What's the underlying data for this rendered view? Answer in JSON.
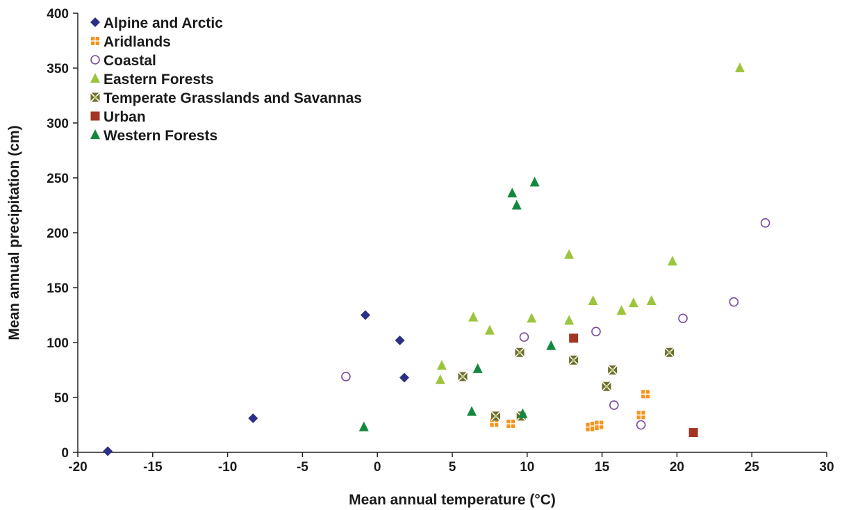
{
  "chart_data": {
    "type": "scatter",
    "title": "",
    "xlabel": "Mean annual temperature (°C)",
    "ylabel": "Mean annual precipitation (cm)",
    "xlim": [
      -20,
      30
    ],
    "ylim": [
      0,
      400
    ],
    "xticks": [
      -20,
      -15,
      -10,
      -5,
      0,
      5,
      10,
      15,
      20,
      25,
      30
    ],
    "yticks": [
      0,
      50,
      100,
      150,
      200,
      250,
      300,
      350,
      400
    ],
    "grid": false,
    "legend": "top-left",
    "series": [
      {
        "name": "Alpine and Arctic",
        "marker": "diamond",
        "color": "#2b2f86",
        "points": [
          [
            -18,
            1
          ],
          [
            -8.3,
            31
          ],
          [
            -0.8,
            125
          ],
          [
            1.5,
            102
          ],
          [
            1.8,
            68
          ]
        ]
      },
      {
        "name": "Aridlands",
        "marker": "square-cross",
        "color": "#f7941d",
        "points": [
          [
            7.8,
            27
          ],
          [
            8.9,
            26
          ],
          [
            14.2,
            23
          ],
          [
            14.5,
            24
          ],
          [
            14.8,
            25
          ],
          [
            17.6,
            34
          ],
          [
            17.9,
            53
          ]
        ]
      },
      {
        "name": "Coastal",
        "marker": "circle-open",
        "color": "#7a4a9b",
        "points": [
          [
            -2.1,
            69
          ],
          [
            9.8,
            105
          ],
          [
            14.6,
            110
          ],
          [
            15.8,
            43
          ],
          [
            17.6,
            25
          ],
          [
            20.4,
            122
          ],
          [
            23.8,
            137
          ],
          [
            25.9,
            209
          ]
        ]
      },
      {
        "name": "Eastern Forests",
        "marker": "triangle",
        "color": "#9bc53d",
        "points": [
          [
            4.2,
            66
          ],
          [
            4.3,
            79
          ],
          [
            6.4,
            123
          ],
          [
            7.5,
            111
          ],
          [
            10.3,
            122
          ],
          [
            12.8,
            120
          ],
          [
            12.8,
            180
          ],
          [
            14.4,
            138
          ],
          [
            16.3,
            129
          ],
          [
            17.1,
            136
          ],
          [
            18.3,
            138
          ],
          [
            19.7,
            174
          ],
          [
            24.2,
            350
          ]
        ]
      },
      {
        "name": "Temperate Grasslands and Savannas",
        "marker": "square-x",
        "color": "#6e6e2a",
        "points": [
          [
            5.7,
            69
          ],
          [
            7.9,
            33
          ],
          [
            9.5,
            91
          ],
          [
            9.6,
            33
          ],
          [
            13.1,
            84
          ],
          [
            15.3,
            60
          ],
          [
            15.7,
            75
          ],
          [
            19.5,
            91
          ]
        ]
      },
      {
        "name": "Urban",
        "marker": "square",
        "color": "#a33522",
        "points": [
          [
            13.1,
            104
          ],
          [
            21.1,
            18
          ]
        ]
      },
      {
        "name": "Western Forests",
        "marker": "triangle",
        "color": "#15883f",
        "points": [
          [
            -0.9,
            23
          ],
          [
            6.3,
            37
          ],
          [
            6.7,
            76
          ],
          [
            9,
            236
          ],
          [
            9.3,
            225
          ],
          [
            9.7,
            35
          ],
          [
            10.5,
            246
          ],
          [
            11.6,
            97
          ]
        ]
      }
    ]
  }
}
